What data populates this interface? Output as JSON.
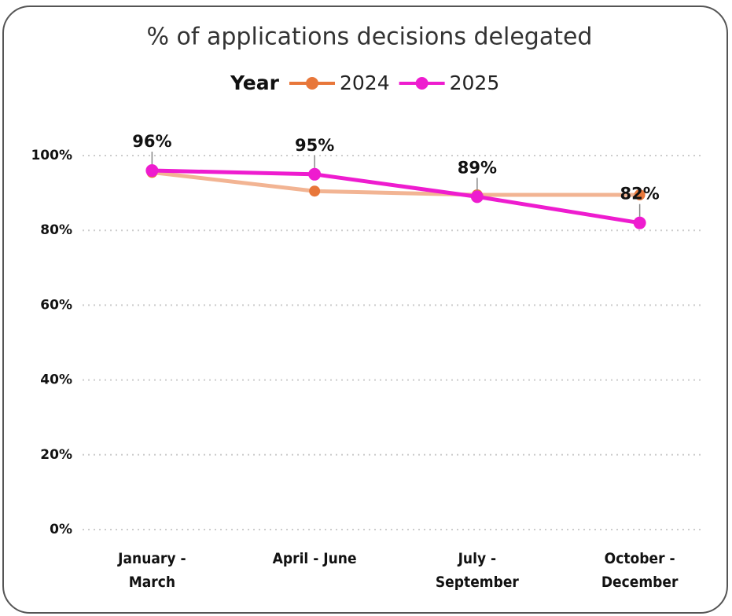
{
  "chart_data": {
    "type": "line",
    "title": "% of applications decisions delegated",
    "legend_title": "Year",
    "categories": [
      "January - March",
      "April - June",
      "July - September",
      "October - December"
    ],
    "series": [
      {
        "name": "2024",
        "color": "#e8773a",
        "values": [
          95.5,
          90.5,
          89.5,
          89.5
        ]
      },
      {
        "name": "2025",
        "color": "#ee1ccf",
        "values": [
          96,
          95,
          89,
          82
        ],
        "value_labels": [
          "96%",
          "95%",
          "89%",
          "82%"
        ]
      }
    ],
    "ylim": [
      0,
      100
    ],
    "yticks": [
      {
        "value": 0,
        "label": "0%"
      },
      {
        "value": 20,
        "label": "20%"
      },
      {
        "value": 40,
        "label": "40%"
      },
      {
        "value": 60,
        "label": "60%"
      },
      {
        "value": 80,
        "label": "80%"
      },
      {
        "value": 100,
        "label": "100%"
      }
    ],
    "grid": true
  }
}
